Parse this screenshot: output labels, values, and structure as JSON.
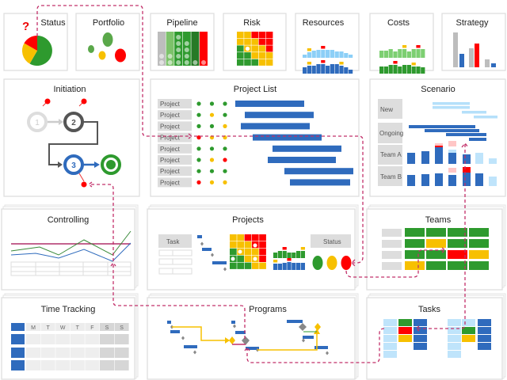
{
  "colors": {
    "green": "#2e9a2e",
    "dark_green": "#267a26",
    "light_green": "#7dcf72",
    "yellow": "#f7c000",
    "red": "#ff0000",
    "blue": "#2f6bbd",
    "light_blue": "#8ccff7",
    "pale_blue": "#bfe4fb",
    "gray": "#c6c6c6",
    "connector": "#c2306a"
  },
  "panels": {
    "status": {
      "title": "Status",
      "question": "?"
    },
    "portfolio": {
      "title": "Portfolio"
    },
    "pipeline": {
      "title": "Pipeline"
    },
    "risk": {
      "title": "Risk"
    },
    "resources": {
      "title": "Resources"
    },
    "costs": {
      "title": "Costs"
    },
    "strategy": {
      "title": "Strategy"
    },
    "initiation": {
      "title": "Initiation",
      "steps": [
        "1",
        "2",
        "3"
      ]
    },
    "project_list": {
      "title": "Project List",
      "rows": [
        {
          "label": "Project",
          "dots": [
            "green",
            "green",
            "green"
          ]
        },
        {
          "label": "Project",
          "dots": [
            "green",
            "yellow",
            "green"
          ]
        },
        {
          "label": "Project",
          "dots": [
            "green",
            "green",
            "yellow"
          ]
        },
        {
          "label": "Project",
          "dots": [
            "red",
            "yellow",
            "yellow"
          ]
        },
        {
          "label": "Project",
          "dots": [
            "green",
            "green",
            "green"
          ]
        },
        {
          "label": "Project",
          "dots": [
            "green",
            "yellow",
            "red"
          ]
        },
        {
          "label": "Project",
          "dots": [
            "green",
            "green",
            "green"
          ]
        },
        {
          "label": "Project",
          "dots": [
            "red",
            "yellow",
            "yellow"
          ]
        }
      ]
    },
    "scenario": {
      "title": "Scenario",
      "rows": [
        "New",
        "Ongoing",
        "Team A",
        "Team B"
      ]
    },
    "controlling": {
      "title": "Controlling"
    },
    "projects": {
      "title": "Projects",
      "task_label": "Task",
      "status_label": "Status"
    },
    "teams": {
      "title": "Teams"
    },
    "time_tracking": {
      "title": "Time Tracking",
      "days": [
        "M",
        "T",
        "W",
        "T",
        "F",
        "S",
        "S"
      ]
    },
    "programs": {
      "title": "Programs"
    },
    "tasks": {
      "title": "Tasks"
    }
  }
}
